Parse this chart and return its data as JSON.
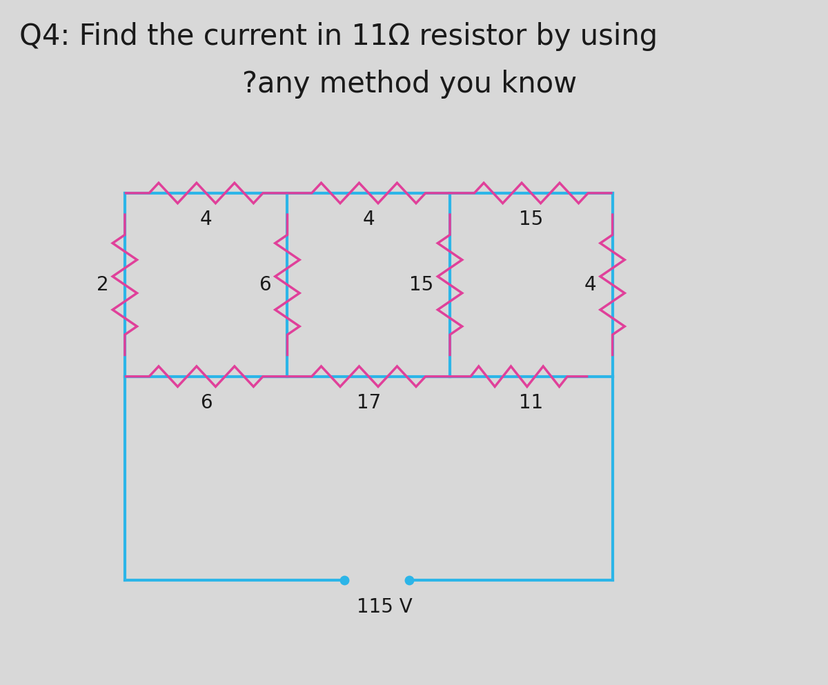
{
  "title_line1": "Q4: Find the current in 11Ω resistor by using",
  "title_line2": "?any method you know",
  "title_fontsize": 30,
  "title_color": "#1a1a1a",
  "bg_color": "#d8d8d8",
  "wire_color": "#2cb5e8",
  "resistor_color": "#e0409a",
  "text_color": "#1a1a1a",
  "voltage_label": "115 V",
  "node_color": "#2cb5e8",
  "xlim": [
    0.0,
    10.0
  ],
  "ylim": [
    0.0,
    10.0
  ]
}
